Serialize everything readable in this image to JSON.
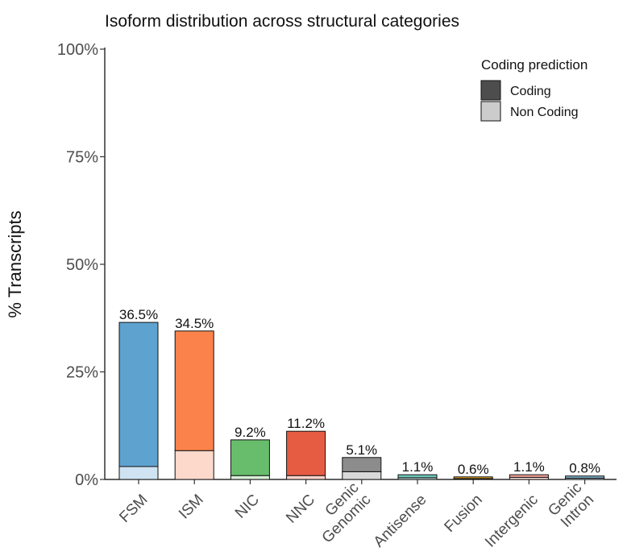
{
  "chart_data": {
    "type": "bar",
    "stacked": true,
    "title": "Isoform distribution across structural categories",
    "ylabel": "% Transcripts",
    "xlabel": "",
    "ylim": [
      0,
      100
    ],
    "yticks": [
      "0%",
      "25%",
      "50%",
      "75%",
      "100%"
    ],
    "ytick_values": [
      0,
      25,
      50,
      75,
      100
    ],
    "categories": [
      {
        "lines": [
          "FSM"
        ]
      },
      {
        "lines": [
          "ISM"
        ]
      },
      {
        "lines": [
          "NIC"
        ]
      },
      {
        "lines": [
          "NNC"
        ]
      },
      {
        "lines": [
          "Genic",
          "Genomic"
        ]
      },
      {
        "lines": [
          "Antisense"
        ]
      },
      {
        "lines": [
          "Fusion"
        ]
      },
      {
        "lines": [
          "Intergenic"
        ]
      },
      {
        "lines": [
          "Genic",
          "Intron"
        ]
      }
    ],
    "totals": [
      36.5,
      34.5,
      9.2,
      11.2,
      5.1,
      1.1,
      0.6,
      1.1,
      0.8
    ],
    "total_labels": [
      "36.5%",
      "34.5%",
      "9.2%",
      "11.2%",
      "5.1%",
      "1.1%",
      "0.6%",
      "1.1%",
      "0.8%"
    ],
    "series": [
      {
        "name": "Non Coding",
        "values": [
          3.0,
          6.7,
          0.9,
          0.9,
          1.8,
          0.4,
          0.2,
          0.5,
          0.3
        ]
      },
      {
        "name": "Coding",
        "values": [
          33.5,
          27.8,
          8.3,
          10.3,
          3.3,
          0.7,
          0.4,
          0.6,
          0.5
        ]
      }
    ],
    "colors": {
      "coding": [
        "#5ea3d0",
        "#fb834b",
        "#67bd6b",
        "#e65c43",
        "#8c8c8c",
        "#6cc7b9",
        "#e8a820",
        "#f7a59a",
        "#7fb6cf"
      ],
      "noncoding": [
        "#cfe3f2",
        "#fdd9cb",
        "#d8efd6",
        "#f9d2c8",
        "#d9d9d9",
        "#d6f0ea",
        "#f8e6bf",
        "#fde2dd",
        "#dbe9f1"
      ]
    },
    "legend": {
      "title": "Coding prediction",
      "position": "top-right",
      "items": [
        {
          "label": "Coding",
          "color": "#4d4d4d"
        },
        {
          "label": "Non Coding",
          "color": "#cccccc"
        }
      ]
    },
    "grid": false
  }
}
